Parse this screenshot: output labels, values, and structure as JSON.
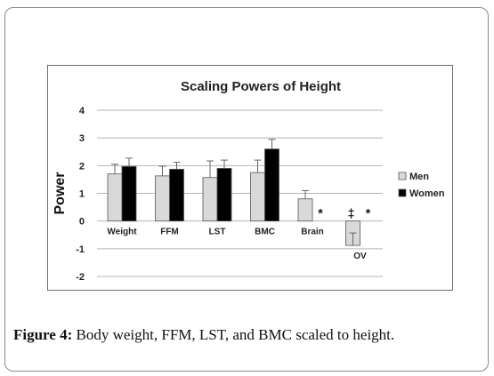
{
  "chart_data": {
    "type": "bar",
    "title": "Scaling Powers of Height",
    "xlabel": "",
    "ylabel": "Power",
    "ylim": [
      -2,
      4
    ],
    "yticks": [
      4,
      3,
      2,
      1,
      0,
      -1,
      -2
    ],
    "grid": true,
    "legend_position": "right",
    "categories": [
      "Weight",
      "FFM",
      "LST",
      "BMC",
      "Brain",
      "OV"
    ],
    "series": [
      {
        "name": "Men",
        "color": "#d9d9d9",
        "values": [
          1.7,
          1.63,
          1.57,
          1.75,
          0.8,
          -0.88
        ],
        "errors": [
          0.35,
          0.35,
          0.6,
          0.45,
          0.3,
          0.45
        ]
      },
      {
        "name": "Women",
        "color": "#000000",
        "values": [
          1.97,
          1.87,
          1.9,
          2.6,
          null,
          null
        ],
        "errors": [
          0.3,
          0.25,
          0.3,
          0.35,
          null,
          null
        ]
      }
    ],
    "annotations": [
      {
        "category": "Brain",
        "text": "*"
      },
      {
        "category": "OV",
        "text": "‡"
      },
      {
        "category": "OV",
        "text": "*"
      }
    ]
  },
  "caption": {
    "label": "Figure 4:",
    "text": " Body weight, FFM, LST, and BMC scaled to height."
  }
}
